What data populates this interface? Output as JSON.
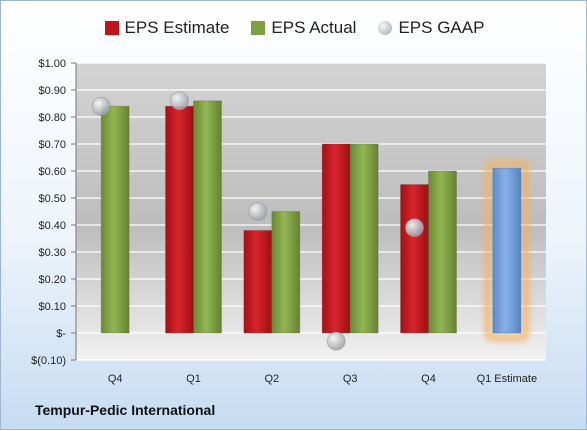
{
  "chart_data": {
    "type": "bar",
    "categories": [
      "Q4",
      "Q1",
      "Q2",
      "Q3",
      "Q4",
      "Q1 Estimate"
    ],
    "series": [
      {
        "name": "EPS Estimate",
        "values": [
          null,
          0.84,
          0.38,
          0.7,
          0.55,
          null
        ],
        "color": "#c0141c"
      },
      {
        "name": "EPS Actual",
        "values": [
          0.84,
          0.86,
          0.45,
          0.7,
          0.6,
          null
        ],
        "color": "#7fa040"
      },
      {
        "name": "EPS GAAP",
        "type": "scatter",
        "values": [
          0.84,
          0.86,
          0.45,
          -0.03,
          0.39,
          null
        ],
        "color": "#b9bdc2"
      }
    ],
    "projected": {
      "category": "Q1 Estimate",
      "value": 0.61,
      "color": "#6f9fd8",
      "glow": "#f5b060"
    },
    "yticks": [
      "$1.00",
      "$0.90",
      "$0.80",
      "$0.70",
      "$0.60",
      "$0.50",
      "$0.40",
      "$0.30",
      "$0.20",
      "$0.10",
      "$-",
      "$(0.10)"
    ],
    "ylim": [
      -0.1,
      1.0
    ],
    "grid": true,
    "legend_position": "top",
    "company": "Tempur-Pedic International"
  }
}
